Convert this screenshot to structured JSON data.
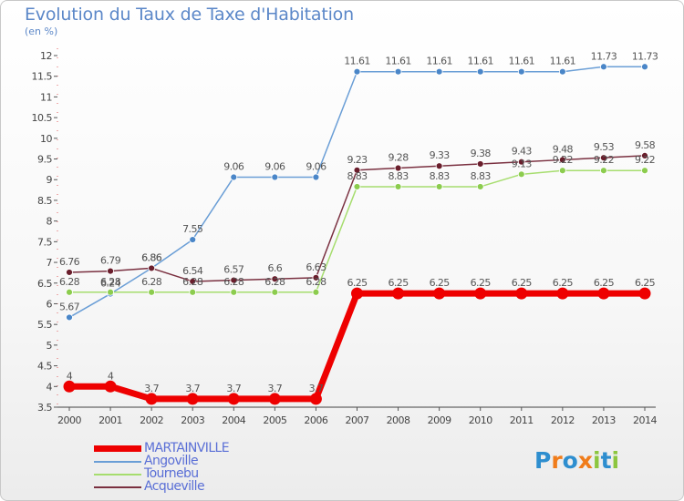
{
  "title": "Evolution du Taux de Taxe d'Habitation",
  "subtitle": "(en %)",
  "logo": {
    "text": "Proxiti"
  },
  "chart_data": {
    "type": "line",
    "x": [
      "2000",
      "2001",
      "2002",
      "2003",
      "2004",
      "2005",
      "2006",
      "2007",
      "2008",
      "2009",
      "2010",
      "2011",
      "2012",
      "2013",
      "2014"
    ],
    "ylim": [
      3.5,
      12
    ],
    "yticks": [
      "3.5",
      "4",
      "4.5",
      "5",
      "5.5",
      "6",
      "6.5",
      "7",
      "7.5",
      "8",
      "8.5",
      "9",
      "9.5",
      "10",
      "10.5",
      "11",
      "11.5",
      "12"
    ],
    "grid": false,
    "legend_position": "bottom-left",
    "series": [
      {
        "name": "MARTAINVILLE",
        "color": "#ee0000",
        "marker_color": "#ee0000",
        "line_width": 7,
        "marker_radius": 6.5,
        "values": [
          4,
          4,
          3.7,
          3.7,
          3.7,
          3.7,
          3.7,
          6.25,
          6.25,
          6.25,
          6.25,
          6.25,
          6.25,
          6.25,
          6.25
        ],
        "labels": [
          "4",
          "4",
          "3.7",
          "3.7",
          "3.7",
          "3.7",
          "3.7",
          "6.25",
          "6.25",
          "6.25",
          "6.25",
          "6.25",
          "6.25",
          "6.25",
          "6.25"
        ]
      },
      {
        "name": "Angoville",
        "color": "#6a9ed6",
        "marker_color": "#4a86c8",
        "line_width": 1.5,
        "marker_radius": 3.5,
        "values": [
          5.67,
          6.24,
          6.86,
          7.55,
          9.06,
          9.06,
          9.06,
          11.61,
          11.61,
          11.61,
          11.61,
          11.61,
          11.61,
          11.73,
          11.73
        ],
        "labels": [
          "5.67",
          "6.24",
          "6.86",
          "7.55",
          "9.06",
          "9.06",
          "9.06",
          "11.61",
          "11.61",
          "11.61",
          "11.61",
          "11.61",
          "11.61",
          "11.73",
          "11.73"
        ]
      },
      {
        "name": "Tournebu",
        "color": "#a6dd6e",
        "marker_color": "#8ccc4e",
        "line_width": 1.5,
        "marker_radius": 3.5,
        "values": [
          6.28,
          6.28,
          6.28,
          6.28,
          6.28,
          6.28,
          6.28,
          8.83,
          8.83,
          8.83,
          8.83,
          9.13,
          9.22,
          9.22,
          9.22
        ],
        "labels": [
          "6.28",
          "6.28",
          "6.28",
          "6.28",
          "6.28",
          "6.28",
          "6.28",
          "8.83",
          "8.83",
          "8.83",
          "8.83",
          "9.13",
          "9.22",
          "9.22",
          "9.22"
        ]
      },
      {
        "name": "Acqueville",
        "color": "#7a3040",
        "marker_color": "#6a1e2c",
        "line_width": 1.5,
        "marker_radius": 3.5,
        "values": [
          6.76,
          6.79,
          6.86,
          6.54,
          6.57,
          6.6,
          6.63,
          9.23,
          9.28,
          9.33,
          9.38,
          9.43,
          9.48,
          9.53,
          9.58
        ],
        "labels": [
          "6.76",
          "6.79",
          "6.86",
          "6.54",
          "6.57",
          "6.6",
          "6.63",
          "9.23",
          "9.28",
          "9.33",
          "9.38",
          "9.43",
          "9.48",
          "9.53",
          "9.58"
        ]
      }
    ]
  }
}
